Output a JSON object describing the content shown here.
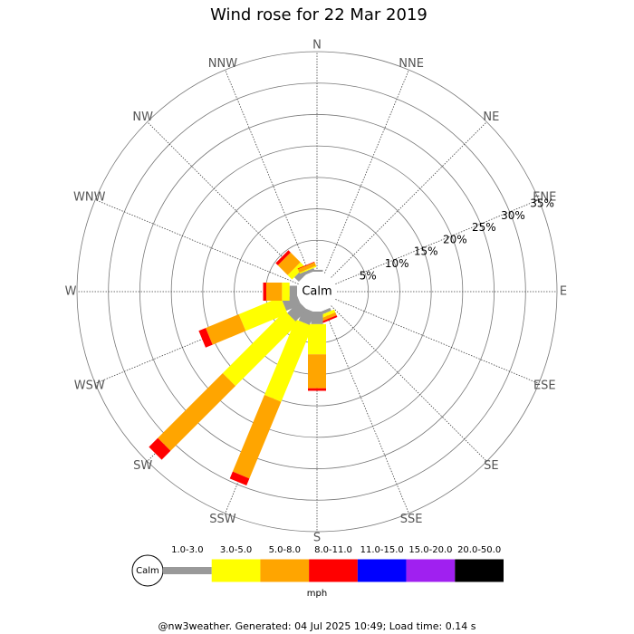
{
  "chart_data": {
    "type": "windrose",
    "title": "Wind rose for 22 Mar 2019",
    "categories": [
      "N",
      "NNE",
      "NE",
      "ENE",
      "E",
      "ESE",
      "SE",
      "SSE",
      "S",
      "SSW",
      "SW",
      "WSW",
      "W",
      "WNW",
      "NW",
      "NNW"
    ],
    "calm_label": "Calm",
    "rlim": [
      0,
      35
    ],
    "rticks": [
      {
        "value": 5,
        "label": "5%"
      },
      {
        "value": 10,
        "label": "10%"
      },
      {
        "value": 15,
        "label": "15%"
      },
      {
        "value": 20,
        "label": "20%"
      },
      {
        "value": 25,
        "label": "25%"
      },
      {
        "value": 30,
        "label": "30%"
      },
      {
        "value": 35,
        "label": "35%"
      }
    ],
    "series": [
      {
        "name": "1.0-3.0",
        "color": "#999999",
        "values": [
          0.3,
          0,
          0,
          0,
          0,
          0,
          0,
          0.5,
          2,
          2.2,
          2.6,
          2.5,
          1.2,
          0,
          1,
          0.5
        ]
      },
      {
        "name": "3.0-5.0",
        "color": "#ffff00",
        "values": [
          0,
          0,
          0,
          0,
          0,
          0,
          0,
          0.5,
          4.8,
          13,
          14,
          7.2,
          1.2,
          0,
          1,
          0.2
        ]
      },
      {
        "name": "5.0-8.0",
        "color": "#ffa500",
        "values": [
          0,
          0,
          0,
          0,
          0,
          0,
          0,
          0.5,
          5.4,
          13.2,
          14.6,
          5.7,
          2.5,
          0,
          2.2,
          0.6
        ]
      },
      {
        "name": "8.0-11.0",
        "color": "#ff0000",
        "values": [
          0,
          0,
          0,
          0,
          0,
          0,
          0,
          0.3,
          0.4,
          1.2,
          2,
          1.2,
          0.5,
          0,
          0.5,
          0.1
        ]
      },
      {
        "name": "11.0-15.0",
        "color": "#0000ff",
        "values": [
          0,
          0,
          0,
          0,
          0,
          0,
          0,
          0,
          0,
          0,
          0,
          0,
          0,
          0,
          0,
          0
        ]
      },
      {
        "name": "15.0-20.0",
        "color": "#a020f0",
        "values": [
          0,
          0,
          0,
          0,
          0,
          0,
          0,
          0,
          0,
          0,
          0,
          0,
          0,
          0,
          0,
          0
        ]
      },
      {
        "name": "20.0-50.0",
        "color": "#000000",
        "values": [
          0,
          0,
          0,
          0,
          0,
          0,
          0,
          0,
          0,
          0,
          0,
          0,
          0,
          0,
          0,
          0
        ]
      }
    ],
    "legend_unit": "mph",
    "footer": "@nw3weather. Generated: 04 Jul 2025 10:49; Load time: 0.14 s"
  }
}
